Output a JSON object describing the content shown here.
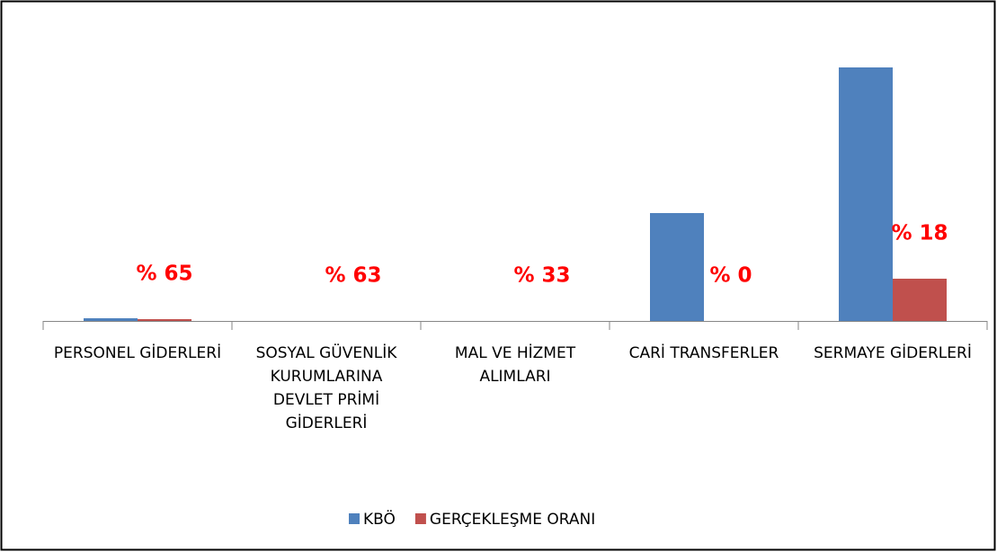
{
  "chart_data": {
    "type": "bar",
    "categories": [
      "PERSONEL GİDERLERİ",
      "SOSYAL GÜVENLİK KURUMLARINA DEVLET PRİMİ GİDERLERİ",
      "MAL VE HİZMET ALIMLARI",
      "CARİ TRANSFERLER",
      "SERMAYE GİDERLERİ"
    ],
    "series": [
      {
        "name": "KBÖ",
        "color": "#4f81bd",
        "values": [
          3,
          0,
          0,
          120,
          282
        ]
      },
      {
        "name": "GERÇEKLEŞME ORANI",
        "color": "#c0504d",
        "values": [
          2,
          0,
          0,
          0,
          47
        ]
      }
    ],
    "annotations": [
      "% 65",
      "% 63",
      "% 33",
      "% 0",
      "% 18"
    ],
    "annotation_color": "#ff0000",
    "ylim": [
      0,
      300
    ],
    "legend": "bottom"
  }
}
